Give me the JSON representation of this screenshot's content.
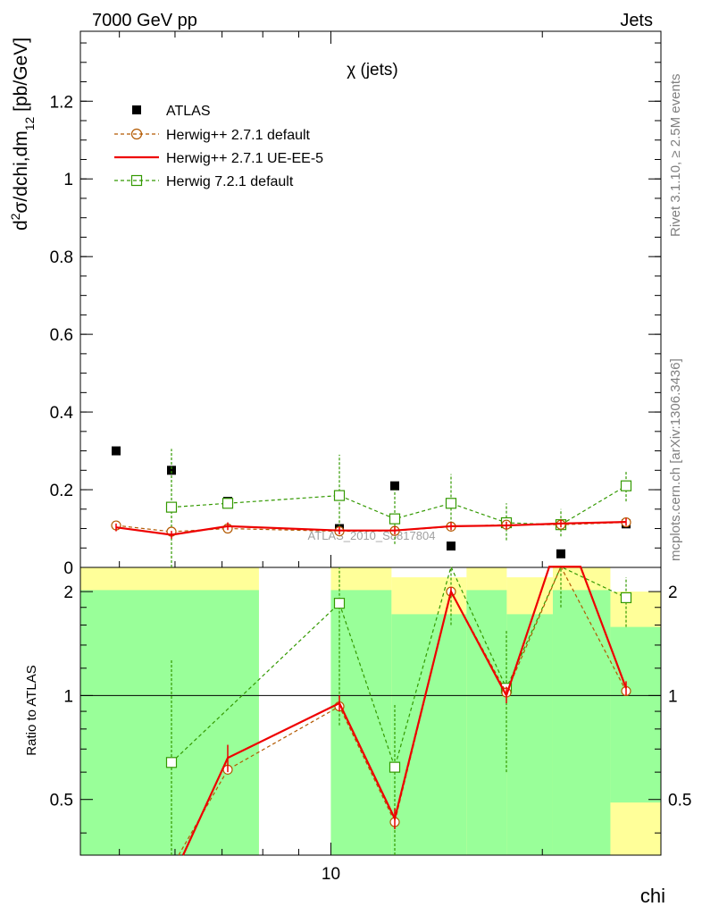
{
  "header": {
    "energy_label": "7000 GeV pp",
    "category_label": "Jets"
  },
  "side_labels": {
    "rivet": "Rivet 3.1.10, ≥ 2.5M events",
    "mcplots": "mcplots.cern.ch [arXiv:1306.3436]"
  },
  "watermark": "ATLAS_2010_S8817804",
  "chart_data": [
    {
      "type": "scatter",
      "panel": "main",
      "title": "χ (jets)",
      "ylabel": "d²σ/dchi,dm₁₂ [pb/GeV]",
      "ylim": [
        0,
        1.38
      ],
      "yticks": [
        "0",
        "0.2",
        "0.4",
        "0.6",
        "0.8",
        "1",
        "1.2"
      ],
      "x_scale": "log",
      "xlim": [
        4.4,
        29.5
      ],
      "legend_position": "top-left",
      "series": [
        {
          "name": "ATLAS",
          "color": "#000000",
          "x": [
            5.0,
            6.3,
            7.9,
            10.0,
            12.6,
            15.8
          ],
          "y": [
            0.3,
            0.25,
            0.17,
            0.1,
            0.21,
            0.055
          ]
        },
        {
          "name": "Herwig++ 2.7.1 default",
          "color": "#b35900",
          "x": [
            5.0,
            6.3,
            7.9,
            10.0,
            12.6,
            15.8,
            19.8,
            25.0,
            30.0
          ],
          "y": [
            0.108,
            0.092,
            0.1,
            0.093,
            0.094,
            0.105,
            0.11,
            0.11,
            0.116
          ]
        },
        {
          "name": "Herwig++ 2.7.1 UE-EE-5",
          "color": "#ee0000",
          "x": [
            5.0,
            6.3,
            7.9,
            10.0,
            12.6,
            15.8,
            19.8,
            25.0,
            30.0
          ],
          "y": [
            0.103,
            0.084,
            0.106,
            0.095,
            0.095,
            0.106,
            0.108,
            0.113,
            0.117
          ]
        },
        {
          "name": "Herwig 7.2.1 default",
          "color": "#339900",
          "x": [
            6.3,
            10.0,
            12.6,
            15.8,
            19.8,
            25.0,
            30.0
          ],
          "y": [
            0.155,
            0.185,
            0.125,
            0.165,
            0.115,
            0.11,
            0.21
          ]
        }
      ]
    },
    {
      "type": "line",
      "panel": "ratio",
      "ylabel": "Ratio to ATLAS",
      "yticks": [
        "0.5",
        "1",
        "2"
      ],
      "x_scale": "log",
      "xlabel": "chi",
      "xticks": [
        "10"
      ],
      "series": [
        {
          "name": "Herwig++ 2.7.1 default",
          "values": [
            0.33,
            0.61,
            0.93,
            0.43,
            2.0,
            1.02,
            2.8,
            1.03
          ]
        },
        {
          "name": "Herwig++ 2.7.1 UE-EE-5",
          "values": [
            0.33,
            0.66,
            0.95,
            0.44,
            2.0,
            1.0,
            2.8,
            1.05
          ]
        },
        {
          "name": "Herwig 7.2.1 default",
          "values": [
            0.64,
            1.85,
            0.62,
            2.5,
            1.05,
            2.5,
            1.92
          ]
        }
      ]
    }
  ]
}
